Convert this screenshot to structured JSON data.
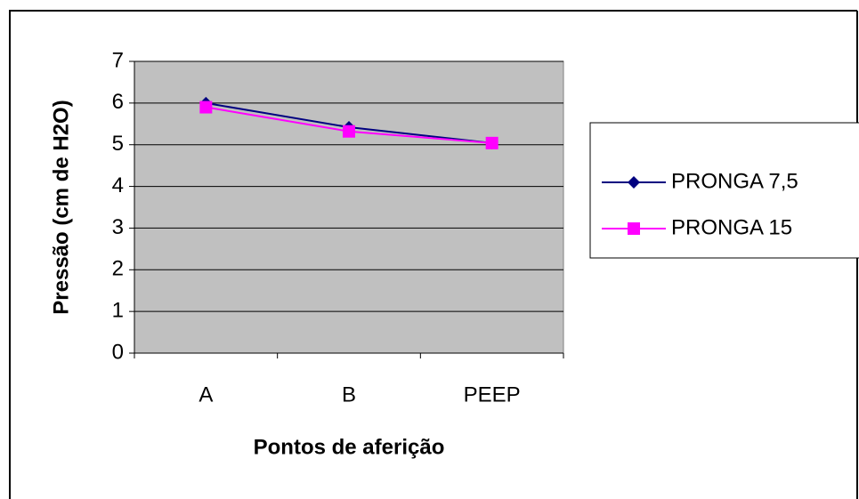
{
  "chart_data": {
    "type": "line",
    "x_label": "Pontos de aferição",
    "y_label": "Pressão (cm de H2O)",
    "categories": [
      "A",
      "B",
      "PEEP"
    ],
    "series": [
      {
        "name": "PRONGA 7,5",
        "color": "#000080",
        "marker": "diamond",
        "values": [
          6.0,
          5.42,
          5.04
        ]
      },
      {
        "name": "PRONGA 15",
        "color": "#ff00ff",
        "marker": "square",
        "values": [
          5.9,
          5.32,
          5.04
        ]
      }
    ],
    "ylim": [
      0,
      7
    ],
    "yticks": [
      0,
      1,
      2,
      3,
      4,
      5,
      6,
      7
    ],
    "grid": true,
    "legend": "right",
    "plot_background": "#c0c0c0"
  }
}
